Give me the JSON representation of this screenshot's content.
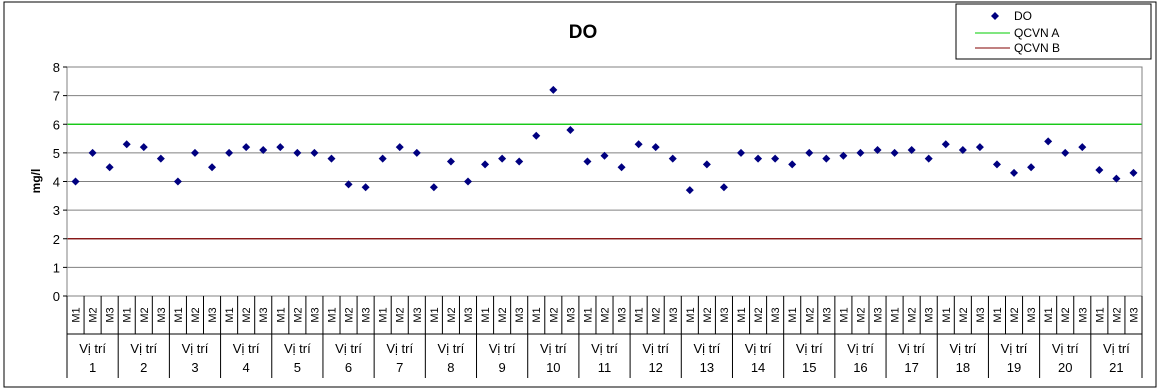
{
  "chart_data": {
    "type": "scatter",
    "title": "DO",
    "ylabel": "mg/l",
    "xlabel": "",
    "ylim": [
      0,
      8
    ],
    "yticks": [
      0,
      1,
      2,
      3,
      4,
      5,
      6,
      7,
      8
    ],
    "grid": "horizontal",
    "legend_position": "top-right",
    "group_prefix": "Vị trí",
    "groups": [
      "1",
      "2",
      "3",
      "4",
      "5",
      "6",
      "7",
      "8",
      "9",
      "10",
      "11",
      "12",
      "13",
      "14",
      "15",
      "16",
      "17",
      "18",
      "19",
      "20",
      "21"
    ],
    "subcategories": [
      "M1",
      "M2",
      "M3"
    ],
    "series": [
      {
        "name": "DO",
        "marker": "diamond",
        "color": "#000080",
        "values": [
          4.0,
          5.0,
          4.5,
          5.3,
          5.2,
          4.8,
          4.0,
          5.0,
          4.5,
          5.0,
          5.2,
          5.1,
          5.2,
          5.0,
          5.0,
          4.8,
          3.9,
          3.8,
          4.8,
          5.2,
          5.0,
          3.8,
          4.7,
          4.0,
          4.6,
          4.8,
          4.7,
          5.6,
          7.2,
          5.8,
          4.7,
          4.9,
          4.5,
          5.3,
          5.2,
          4.8,
          3.7,
          4.6,
          3.8,
          5.0,
          4.8,
          4.8,
          4.6,
          5.0,
          4.8,
          4.9,
          5.0,
          5.1,
          5.0,
          5.1,
          4.8,
          5.3,
          5.1,
          5.2,
          4.6,
          4.3,
          4.5,
          5.4,
          5.0,
          5.2,
          4.4,
          4.1,
          4.3
        ]
      },
      {
        "name": "QCVN A",
        "type": "hline",
        "value": 6,
        "color": "#00cc00"
      },
      {
        "name": "QCVN B",
        "type": "hline",
        "value": 2,
        "color": "#800000"
      }
    ]
  }
}
